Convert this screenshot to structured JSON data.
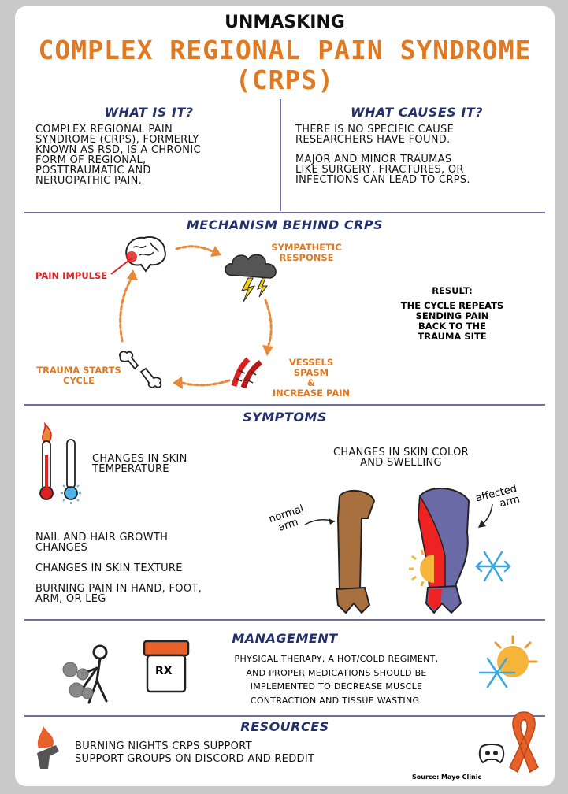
{
  "brand": "UNMASKING",
  "title_line1": "COMPLEX REGIONAL PAIN SYNDROME",
  "title_line2": "(CRPS)",
  "what_is_it": {
    "heading": "WHAT IS IT?",
    "lines": [
      "COMPLEX REGIONAL PAIN",
      "SYNDROME (CRPS), FORMERLY",
      "KNOWN AS RSD, IS A CHRONIC",
      "FORM OF REGIONAL,",
      "POSTTRAUMATIC AND",
      "NERUOPATHIC PAIN."
    ]
  },
  "what_causes_it": {
    "heading": "WHAT CAUSES IT?",
    "para1": [
      "THERE IS NO SPECIFIC CAUSE",
      "RESEARCHERS HAVE FOUND."
    ],
    "para2": [
      "MAJOR AND MINOR TRAUMAS",
      "LIKE SURGERY, FRACTURES, OR",
      "INFECTIONS CAN LEAD TO CRPS."
    ]
  },
  "mechanism": {
    "heading": "MECHANISM BEHIND CRPS",
    "pain_impulse": "PAIN IMPULSE",
    "sympathetic": [
      "SYMPATHETIC",
      "RESPONSE"
    ],
    "vessels": [
      "VESSELS SPASM",
      "&",
      "INCREASE PAIN"
    ],
    "trauma": [
      "TRAUMA STARTS",
      "CYCLE"
    ],
    "result_label": "RESULT:",
    "result_lines": [
      "THE CYCLE REPEATS",
      "SENDING PAIN",
      "BACK TO THE",
      "TRAUMA SITE"
    ]
  },
  "symptoms": {
    "heading": "SYMPTOMS",
    "skin_temp": [
      "CHANGES IN SKIN",
      "TEMPERATURE"
    ],
    "skin_color": [
      "CHANGES IN SKIN COLOR",
      "AND SWELLING"
    ],
    "nail_hair": [
      "NAIL AND HAIR GROWTH",
      "CHANGES"
    ],
    "texture": "CHANGES IN SKIN TEXTURE",
    "burning": [
      "BURNING PAIN IN HAND, FOOT,",
      "ARM, OR LEG"
    ],
    "normal_arm": [
      "normal",
      "arm"
    ],
    "affected_arm": [
      "affected",
      "arm"
    ]
  },
  "management": {
    "heading": "MANAGEMENT",
    "rx": "RX",
    "lines": [
      "PHYSICAL THERAPY, A HOT/COLD REGIMENT,",
      "AND PROPER MEDICATIONS SHOULD BE",
      "IMPLEMENTED TO DECREASE MUSCLE",
      "CONTRACTION AND TISSUE WASTING."
    ]
  },
  "resources": {
    "heading": "RESOURCES",
    "lines": [
      "BURNING NIGHTS CRPS SUPPORT",
      "SUPPORT GROUPS ON DISCORD AND REDDIT"
    ]
  },
  "source": "Source: Mayo Clinic",
  "colors": {
    "orange": "#e07a22",
    "navy": "#23306b",
    "red": "#d22222",
    "divider": "#6b6fa8",
    "arm_brown": "#a8703f",
    "arm_purple": "#6a6aa6"
  },
  "icons": [
    "brain-icon",
    "storm-cloud-icon",
    "blood-vessels-icon",
    "broken-bone-icon",
    "thermometer-hot-icon",
    "thermometer-cold-icon",
    "normal-arm-illustration",
    "affected-arm-illustration",
    "sun-icon",
    "snowflake-icon",
    "dumbbell-person-icon",
    "pill-bottle-icon",
    "sun-snowflake-icon",
    "flame-hand-icon",
    "discord-icon",
    "awareness-ribbon-icon"
  ]
}
